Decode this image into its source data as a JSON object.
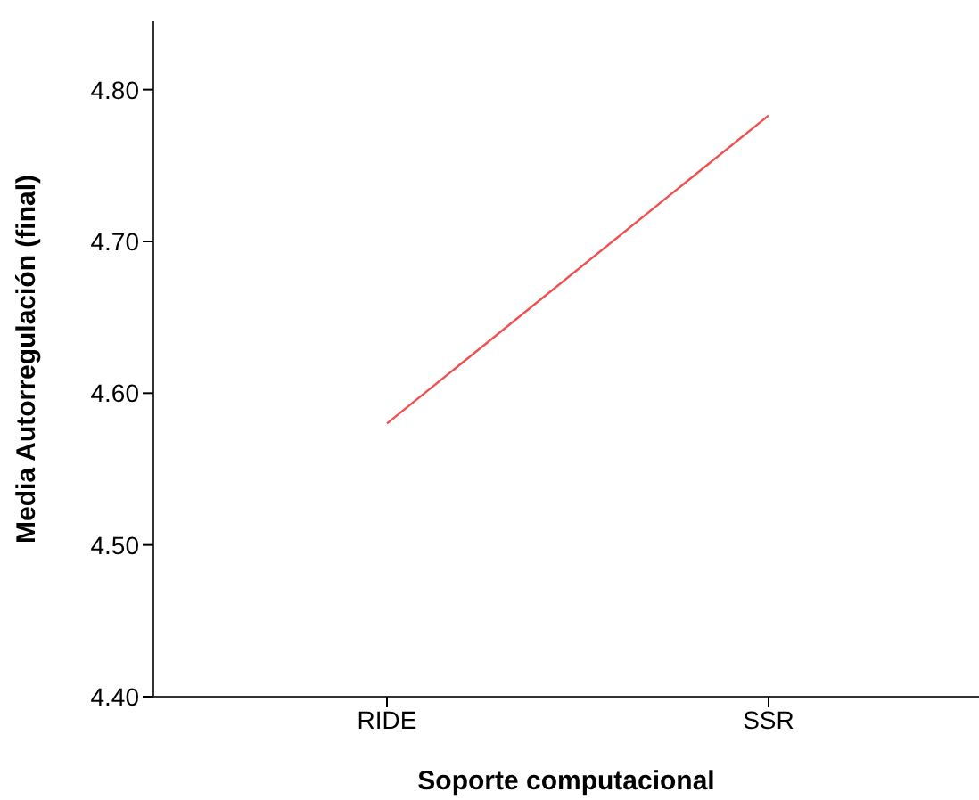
{
  "chart_data": {
    "type": "line",
    "xlabel": "Soporte computacional",
    "ylabel": "Media Autorregulación (final)",
    "categories": [
      "RIDE",
      "SSR"
    ],
    "series": [
      {
        "color": "#f05050",
        "values": [
          4.58,
          4.783
        ]
      }
    ],
    "ylim": [
      4.4,
      4.845
    ],
    "yticks": [
      {
        "value": 4.4,
        "label": "4.40"
      },
      {
        "value": 4.5,
        "label": "4.50"
      },
      {
        "value": 4.6,
        "label": "4.60"
      },
      {
        "value": 4.7,
        "label": "4.70"
      },
      {
        "value": 4.8,
        "label": "4.80"
      }
    ],
    "grid": false,
    "legend": false,
    "marker": "none",
    "line_style": "solid"
  }
}
